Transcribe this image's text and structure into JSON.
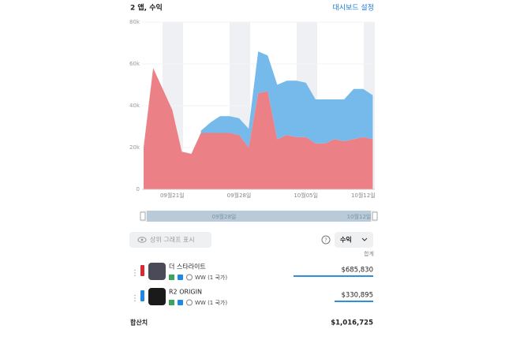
{
  "header": {
    "title": "2 앱, 수익",
    "link": "대시보드 설정"
  },
  "chart_data": {
    "type": "area",
    "stacked": true,
    "categories": [
      null,
      null,
      null,
      "09월21일",
      null,
      null,
      null,
      null,
      null,
      null,
      "09월28일",
      null,
      null,
      null,
      null,
      null,
      null,
      "10월05일",
      null,
      null,
      null,
      null,
      null,
      "10월12일",
      null
    ],
    "series": [
      {
        "name": "더 스타라이트",
        "color": "#ea7a80",
        "values": [
          20000,
          58000,
          48000,
          38000,
          18000,
          17000,
          27000,
          27000,
          27000,
          27000,
          26000,
          20000,
          46000,
          47000,
          24000,
          26000,
          25000,
          25000,
          22000,
          22000,
          24000,
          23000,
          24000,
          25000,
          24000
        ]
      },
      {
        "name": "R2 ORIGIN",
        "color": "#6fb6ea",
        "values": [
          null,
          null,
          null,
          null,
          null,
          null,
          1000,
          5000,
          8000,
          8000,
          8000,
          9000,
          20000,
          17000,
          26000,
          26000,
          27000,
          26000,
          21000,
          21000,
          19000,
          20000,
          24000,
          23000,
          21000
        ]
      }
    ],
    "ylim": [
      0,
      80000
    ],
    "yticks": [
      0,
      {
        "value": 20000,
        "label": "20k"
      },
      {
        "value": 40000,
        "label": "40k"
      },
      {
        "value": 60000,
        "label": "60k"
      },
      {
        "value": 80000,
        "label": "80k"
      }
    ],
    "grid": true
  },
  "range_slider": {
    "labels": [
      "09월28일",
      "10월12일"
    ]
  },
  "controls": {
    "toggle": "상위 그래프 표시",
    "help": "?",
    "metric": "수익",
    "total_header": "합계"
  },
  "apps": [
    {
      "region": "WW (1 국가)",
      "revenue": "$685,830"
    },
    {
      "region": "WW (1 국가)",
      "revenue": "$330,895"
    }
  ],
  "total": {
    "label": "합산치",
    "value": "$1,016,725"
  }
}
